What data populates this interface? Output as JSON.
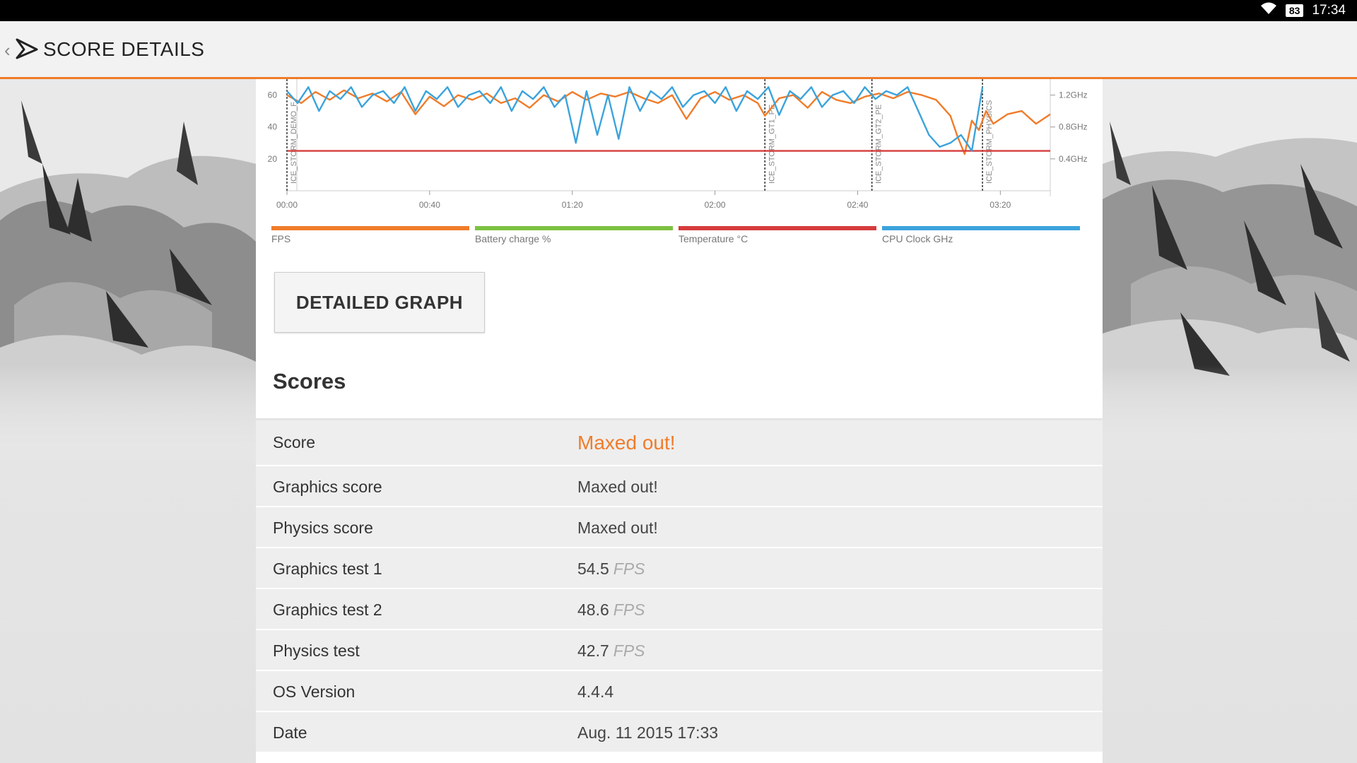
{
  "status_bar": {
    "battery": "83",
    "time": "17:34"
  },
  "app_bar": {
    "title": "SCORE DETAILS"
  },
  "chart_data": {
    "type": "line",
    "x_ticks": [
      "00:00",
      "00:40",
      "01:20",
      "02:00",
      "02:40",
      "03:20"
    ],
    "x_tick_seconds": [
      0,
      40,
      80,
      120,
      160,
      200
    ],
    "x_range": [
      0,
      214
    ],
    "y_left_ticks": [
      20,
      40,
      60
    ],
    "y_left_range": [
      0,
      70
    ],
    "y_right_ticks": [
      "1.2GHz",
      "0.8GHz",
      "0.4GHz"
    ],
    "y_right_tick_values": [
      1.2,
      0.8,
      0.4
    ],
    "y_right_range": [
      0,
      1.4
    ],
    "markers": [
      {
        "label": "ICE_STORM_DEMO_F",
        "x": 0
      },
      {
        "label": "ICE_STORM_GT1_PE",
        "x": 134
      },
      {
        "label": "ICE_STORM_GT2_PE",
        "x": 164
      },
      {
        "label": "ICE_STORM_PHYSICS",
        "x": 195
      }
    ],
    "temperature_line": 25,
    "series": [
      {
        "name": "FPS",
        "color": "#f07c2a",
        "x": [
          0,
          4,
          8,
          12,
          16,
          20,
          24,
          28,
          32,
          36,
          40,
          44,
          48,
          52,
          56,
          60,
          64,
          68,
          72,
          76,
          80,
          84,
          88,
          92,
          96,
          100,
          104,
          108,
          112,
          116,
          120,
          124,
          128,
          132,
          134,
          138,
          142,
          146,
          150,
          154,
          158,
          162,
          166,
          170,
          174,
          178,
          182,
          186,
          188,
          190,
          192,
          194,
          196,
          198,
          202,
          206,
          210,
          214
        ],
        "values": [
          60,
          55,
          62,
          57,
          63,
          58,
          61,
          56,
          62,
          48,
          59,
          53,
          60,
          57,
          61,
          55,
          58,
          52,
          60,
          56,
          62,
          57,
          61,
          59,
          62,
          58,
          55,
          60,
          45,
          58,
          62,
          57,
          60,
          55,
          47,
          58,
          60,
          52,
          62,
          57,
          55,
          59,
          61,
          58,
          62,
          60,
          57,
          47,
          34,
          23,
          44,
          38,
          50,
          42,
          48,
          50,
          42,
          48
        ]
      },
      {
        "name": "Battery charge %",
        "color": "#7dc142",
        "x": [],
        "values": []
      },
      {
        "name": "Temperature  °C",
        "color": "#d63c3c",
        "x": [
          0,
          214
        ],
        "values": [
          25,
          25
        ]
      },
      {
        "name": "CPU Clock GHz",
        "color": "#3ba3dc",
        "x": [
          0,
          3,
          6,
          9,
          12,
          15,
          18,
          21,
          24,
          27,
          30,
          33,
          36,
          39,
          42,
          45,
          48,
          51,
          54,
          57,
          60,
          63,
          66,
          69,
          72,
          75,
          78,
          81,
          84,
          87,
          90,
          93,
          96,
          99,
          102,
          105,
          108,
          111,
          114,
          117,
          120,
          123,
          126,
          129,
          132,
          135,
          138,
          141,
          144,
          147,
          150,
          153,
          156,
          159,
          162,
          165,
          168,
          171,
          174,
          177,
          180,
          183,
          186,
          189,
          192,
          195
        ],
        "values": [
          1.25,
          1.1,
          1.3,
          1.0,
          1.25,
          1.15,
          1.3,
          1.05,
          1.2,
          1.25,
          1.1,
          1.3,
          1.0,
          1.25,
          1.15,
          1.3,
          1.05,
          1.2,
          1.25,
          1.1,
          1.3,
          1.0,
          1.25,
          1.15,
          1.3,
          1.05,
          1.2,
          0.6,
          1.25,
          0.7,
          1.2,
          0.65,
          1.3,
          1.0,
          1.25,
          1.15,
          1.3,
          1.05,
          1.2,
          1.25,
          1.1,
          1.3,
          1.0,
          1.25,
          1.15,
          1.3,
          0.95,
          1.25,
          1.15,
          1.3,
          1.05,
          1.2,
          1.25,
          1.1,
          1.3,
          1.15,
          1.25,
          1.2,
          1.3,
          1.0,
          0.7,
          0.55,
          0.6,
          0.7,
          0.5,
          1.3
        ]
      }
    ],
    "legend_placement": "bottom"
  },
  "legend": [
    {
      "label": "FPS",
      "color": "#f07c2a"
    },
    {
      "label": "Battery charge %",
      "color": "#7dc142"
    },
    {
      "label": "Temperature  °C",
      "color": "#d63c3c"
    },
    {
      "label": "CPU Clock GHz",
      "color": "#3ba3dc"
    }
  ],
  "detailed_graph_label": "DETAILED GRAPH",
  "scores_heading": "Scores",
  "scores": {
    "main": {
      "label": "Score",
      "value": "Maxed out!"
    },
    "rows": [
      {
        "label": "Graphics score",
        "value": "Maxed out!",
        "unit": ""
      },
      {
        "label": "Physics score",
        "value": "Maxed out!",
        "unit": ""
      },
      {
        "label": "Graphics test 1",
        "value": "54.5",
        "unit": "FPS"
      },
      {
        "label": "Graphics test 2",
        "value": "48.6",
        "unit": "FPS"
      },
      {
        "label": "Physics test",
        "value": "42.7",
        "unit": "FPS"
      },
      {
        "label": "OS Version",
        "value": "4.4.4",
        "unit": ""
      },
      {
        "label": "Date",
        "value": "Aug. 11 2015 17:33",
        "unit": ""
      }
    ]
  }
}
